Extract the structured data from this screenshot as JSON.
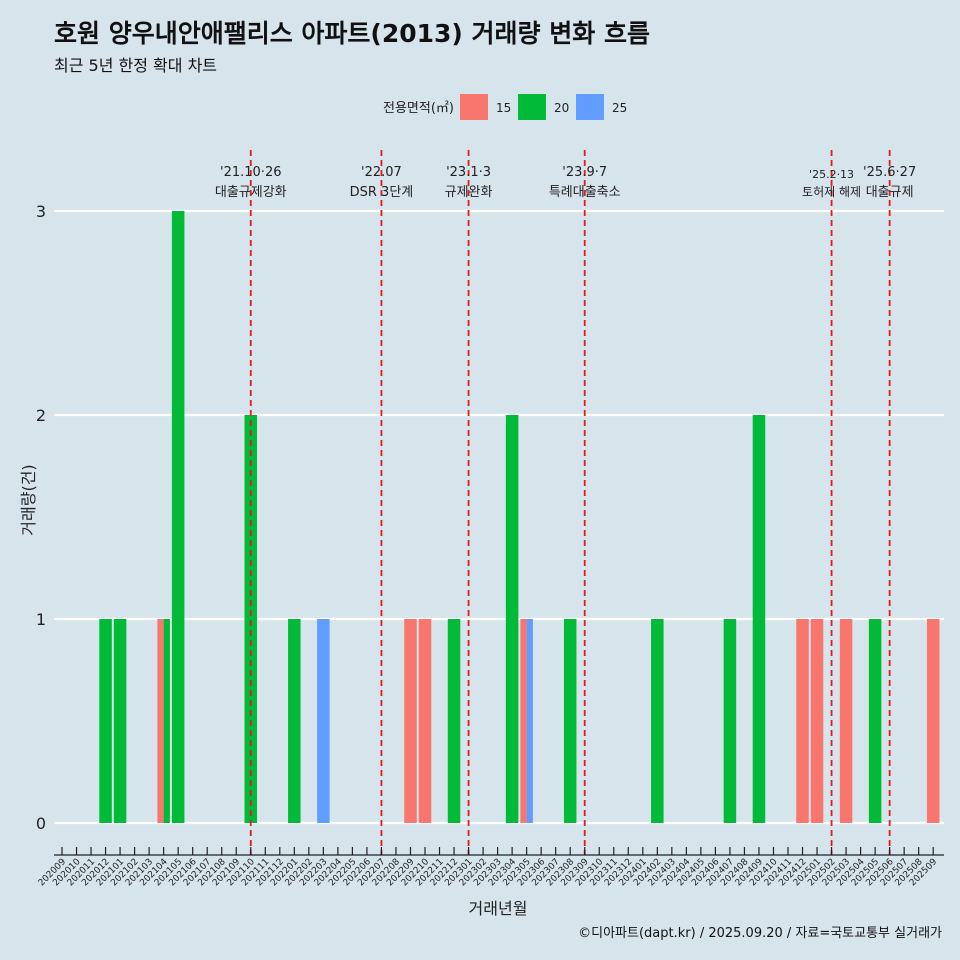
{
  "chart_data": {
    "type": "bar",
    "title": "호원 양우내안애팰리스 아파트(2013) 거래량 변화 흐름",
    "subtitle": "최근 5년 한정 확대 차트",
    "xlabel": "거래년월",
    "ylabel": "거래량(건)",
    "ylim": [
      0,
      3
    ],
    "yticks": [
      0,
      1,
      2,
      3
    ],
    "legend": {
      "title": "전용면적(㎡)",
      "position": "top",
      "entries": [
        {
          "name": "15",
          "color": "#f8766d"
        },
        {
          "name": "20",
          "color": "#00ba38"
        },
        {
          "name": "25",
          "color": "#619cff"
        }
      ]
    },
    "categories": [
      "202009",
      "202010",
      "202011",
      "202012",
      "202101",
      "202102",
      "202103",
      "202104",
      "202105",
      "202106",
      "202107",
      "202108",
      "202109",
      "202110",
      "202111",
      "202112",
      "202201",
      "202202",
      "202203",
      "202204",
      "202205",
      "202206",
      "202207",
      "202208",
      "202209",
      "202210",
      "202211",
      "202212",
      "202301",
      "202302",
      "202303",
      "202304",
      "202305",
      "202306",
      "202307",
      "202308",
      "202309",
      "202310",
      "202311",
      "202312",
      "202401",
      "202402",
      "202403",
      "202404",
      "202405",
      "202406",
      "202407",
      "202408",
      "202409",
      "202410",
      "202411",
      "202412",
      "202501",
      "202502",
      "202503",
      "202504",
      "202505",
      "202506",
      "202507",
      "202508",
      "202509"
    ],
    "series": [
      {
        "name": "15",
        "color": "#f8766d",
        "points": [
          {
            "x": "202104",
            "y": 1
          },
          {
            "x": "202209",
            "y": 1
          },
          {
            "x": "202210",
            "y": 1
          },
          {
            "x": "202305",
            "y": 1
          },
          {
            "x": "202412",
            "y": 1
          },
          {
            "x": "202501",
            "y": 1
          },
          {
            "x": "202503",
            "y": 1
          },
          {
            "x": "202509",
            "y": 1
          }
        ]
      },
      {
        "name": "20",
        "color": "#00ba38",
        "points": [
          {
            "x": "202012",
            "y": 1
          },
          {
            "x": "202101",
            "y": 1
          },
          {
            "x": "202104",
            "y": 1
          },
          {
            "x": "202105",
            "y": 3
          },
          {
            "x": "202110",
            "y": 2
          },
          {
            "x": "202201",
            "y": 1
          },
          {
            "x": "202212",
            "y": 1
          },
          {
            "x": "202304",
            "y": 2
          },
          {
            "x": "202308",
            "y": 1
          },
          {
            "x": "202402",
            "y": 1
          },
          {
            "x": "202407",
            "y": 1
          },
          {
            "x": "202409",
            "y": 2
          },
          {
            "x": "202505",
            "y": 1
          }
        ]
      },
      {
        "name": "25",
        "color": "#619cff",
        "points": [
          {
            "x": "202203",
            "y": 1
          },
          {
            "x": "202305",
            "y": 1
          }
        ]
      }
    ],
    "events": [
      {
        "x": "202110",
        "date": "'21.10·26",
        "label": "대출규제강화"
      },
      {
        "x": "202207",
        "date": "'22.07",
        "label": "DSR 3단계"
      },
      {
        "x": "202301",
        "date": "'23.1·3",
        "label": "규제완화"
      },
      {
        "x": "202309",
        "date": "'23.9·7",
        "label": "특례대출축소"
      },
      {
        "x": "202502",
        "date": "'25.2·13",
        "label": "토허제 해제"
      },
      {
        "x": "202506",
        "date": "'25.6·27",
        "label": "대출규제"
      }
    ]
  },
  "caption": "©디아파트(dapt.kr) / 2025.09.20 / 자료=국토교통부 실거래가"
}
